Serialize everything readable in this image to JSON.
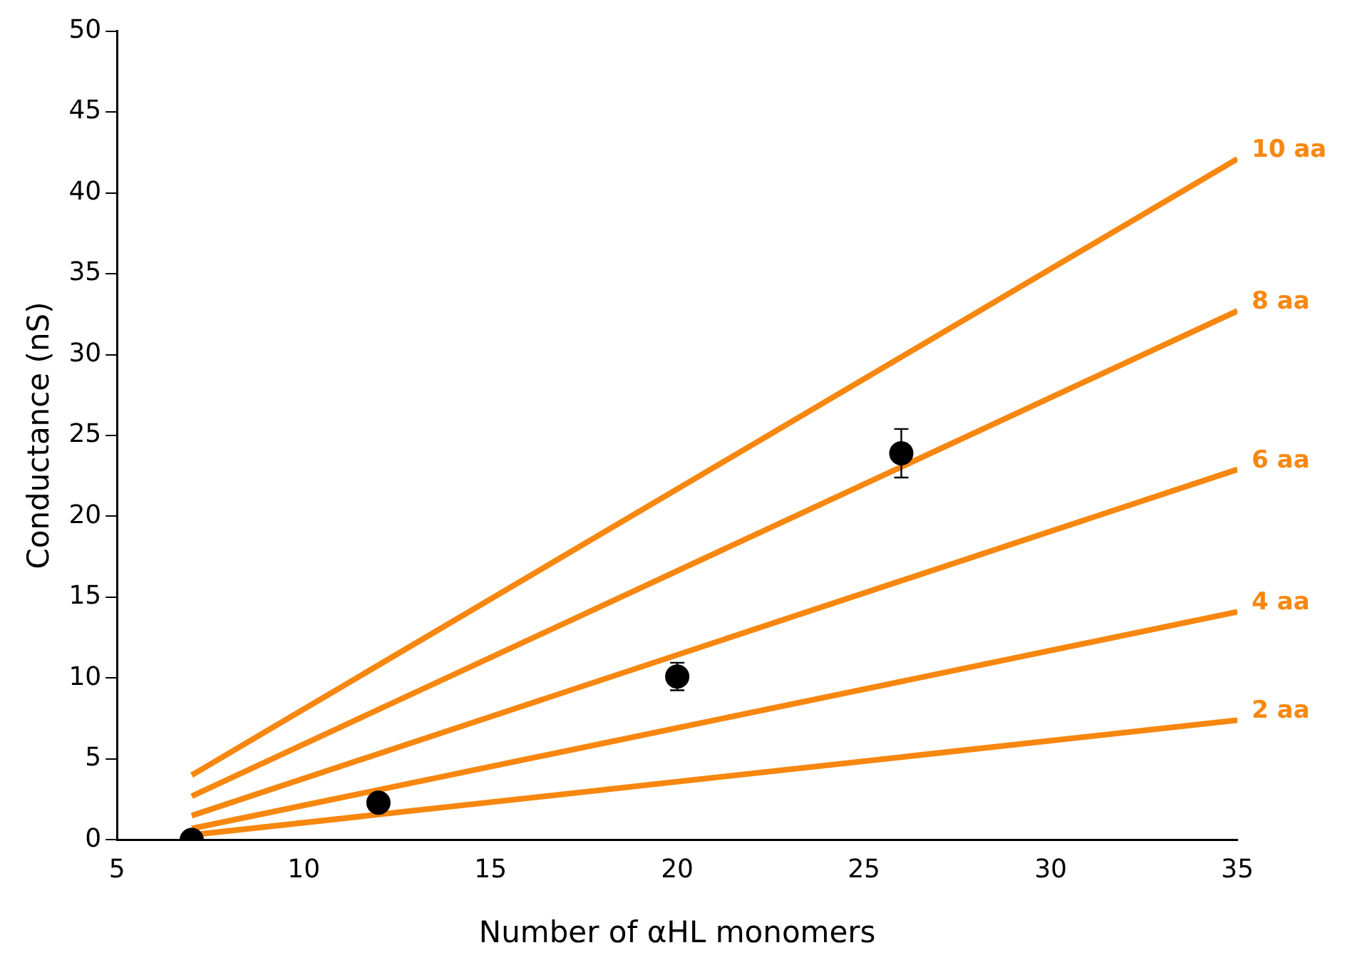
{
  "chart_data": {
    "type": "line",
    "xlabel": "Number of αHL monomers",
    "ylabel": "Conductance (nS)",
    "xlim": [
      5,
      35
    ],
    "xticks": [
      5,
      10,
      15,
      20,
      25,
      30,
      35
    ],
    "ylim": [
      0,
      50
    ],
    "yticks": [
      0,
      5,
      10,
      15,
      20,
      25,
      30,
      35,
      40,
      45,
      50
    ],
    "grid": false,
    "legend": false,
    "marker": "none",
    "line_style": "solid",
    "series": [
      {
        "name": "10 aa",
        "color": "#f7870f",
        "x": [
          7,
          35
        ],
        "values": [
          4.0,
          42.1
        ]
      },
      {
        "name": "8 aa",
        "color": "#f7870f",
        "x": [
          7,
          35
        ],
        "values": [
          2.7,
          32.7
        ]
      },
      {
        "name": "6 aa",
        "color": "#f7870f",
        "x": [
          7,
          35
        ],
        "values": [
          1.5,
          22.9
        ]
      },
      {
        "name": "4 aa",
        "color": "#f7870f",
        "x": [
          7,
          35
        ],
        "values": [
          0.7,
          14.1
        ]
      },
      {
        "name": "2 aa",
        "color": "#f7870f",
        "x": [
          7,
          35
        ],
        "values": [
          0.3,
          7.4
        ]
      },
      {
        "type": "scatter",
        "marker": "circle",
        "color": "#000000",
        "x": [
          7,
          12,
          20,
          26
        ],
        "values": [
          0,
          2.3,
          10.1,
          23.9
        ],
        "errors": [
          null,
          null,
          0.85,
          1.5
        ]
      }
    ]
  }
}
